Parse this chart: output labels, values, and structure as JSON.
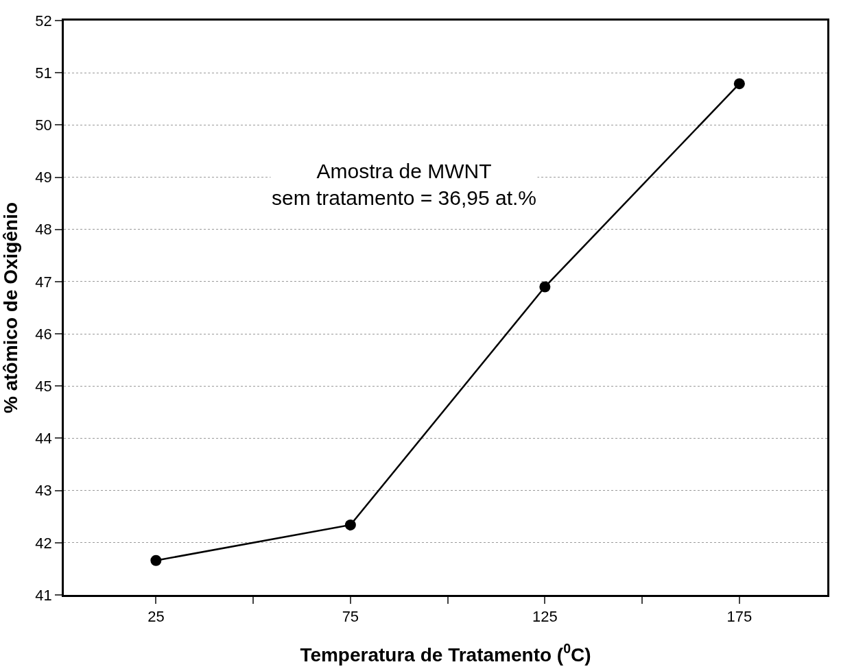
{
  "chart_data": {
    "type": "line",
    "xlabel": "Temperatura de Tratamento ($^{0}$C)",
    "ylabel": "% atômico de Oxigênio",
    "x": [
      25,
      75,
      125,
      175
    ],
    "series": [
      {
        "color": "#000000",
        "values": [
          41.66,
          42.34,
          46.9,
          50.79
        ]
      }
    ],
    "xlim": [
      1.3,
      197.6
    ],
    "xticks": [
      25,
      {
        "value": 50,
        "label": null
      },
      75,
      {
        "value": 100,
        "label": null
      },
      125,
      {
        "value": 150,
        "label": null
      },
      175
    ],
    "ylim": [
      41,
      52
    ],
    "yticks": [
      41,
      42,
      43,
      44,
      45,
      46,
      47,
      48,
      49,
      50,
      51,
      52
    ],
    "grid": "y",
    "marker": "circle",
    "line_style": "solid",
    "legend": false,
    "annotations": [
      "Amostra de MWNT\nsem tratamento = 36,95 at.%"
    ]
  }
}
